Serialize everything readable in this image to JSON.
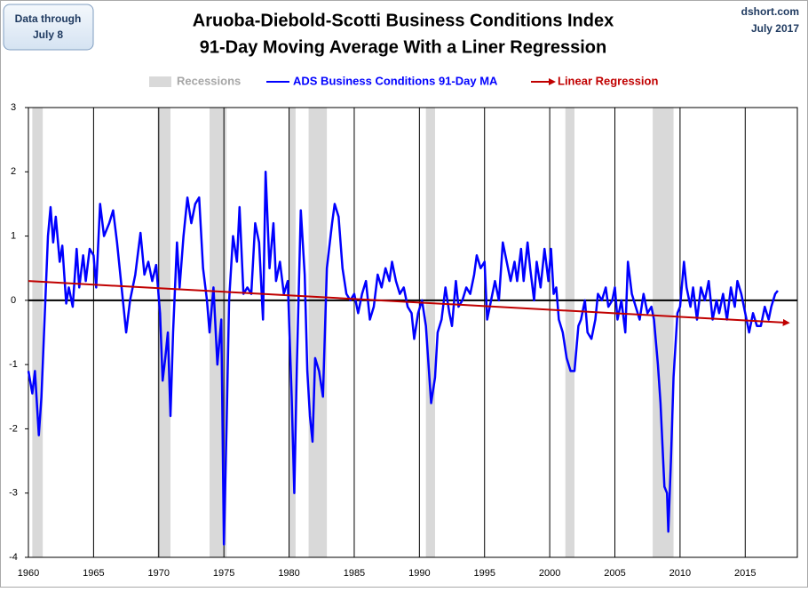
{
  "chart_data": {
    "type": "line",
    "title": "Aruoba-Diebold-Scotti Business Conditions Index",
    "subtitle": "91-Day Moving Average With a Liner Regression",
    "annotations": {
      "data_note": [
        "Data through",
        "July 8"
      ],
      "source": "dshort.com",
      "date": "July 2017"
    },
    "xlim": [
      1960,
      2019
    ],
    "xticks": [
      1960,
      1965,
      1970,
      1975,
      1980,
      1985,
      1990,
      1995,
      2000,
      2005,
      2010,
      2015
    ],
    "ylim": [
      -4,
      3
    ],
    "yticks": [
      -4,
      -3,
      -2,
      -1,
      0,
      1,
      2,
      3
    ],
    "grid": "x",
    "zero_line": true,
    "recessions": {
      "name": "Recessions",
      "color": "#d9d9d9",
      "spans": [
        [
          1960.3,
          1961.1
        ],
        [
          1969.9,
          1970.9
        ],
        [
          1973.9,
          1975.2
        ],
        [
          1980.0,
          1980.5
        ],
        [
          1981.5,
          1982.9
        ],
        [
          1990.5,
          1991.2
        ],
        [
          2001.2,
          2001.9
        ],
        [
          2007.9,
          2009.5
        ]
      ]
    },
    "series": [
      {
        "name": "ADS Business Conditions 91-Day MA",
        "color": "#0000ff",
        "x": [
          1960.0,
          1960.3,
          1960.5,
          1960.8,
          1961.0,
          1961.3,
          1961.5,
          1961.7,
          1961.9,
          1962.1,
          1962.4,
          1962.6,
          1962.9,
          1963.1,
          1963.4,
          1963.7,
          1963.9,
          1964.2,
          1964.4,
          1964.7,
          1965.0,
          1965.2,
          1965.5,
          1965.8,
          1966.2,
          1966.5,
          1966.8,
          1967.1,
          1967.5,
          1967.8,
          1968.2,
          1968.6,
          1968.9,
          1969.2,
          1969.5,
          1969.8,
          1970.1,
          1970.3,
          1970.5,
          1970.7,
          1970.9,
          1971.1,
          1971.4,
          1971.6,
          1971.9,
          1972.2,
          1972.5,
          1972.8,
          1973.1,
          1973.4,
          1973.7,
          1973.9,
          1974.2,
          1974.5,
          1974.8,
          1975.0,
          1975.2,
          1975.4,
          1975.7,
          1976.0,
          1976.2,
          1976.5,
          1976.8,
          1977.1,
          1977.4,
          1977.7,
          1978.0,
          1978.2,
          1978.5,
          1978.8,
          1979.0,
          1979.3,
          1979.6,
          1979.9,
          1980.2,
          1980.4,
          1980.6,
          1980.9,
          1981.2,
          1981.4,
          1981.6,
          1981.8,
          1982.0,
          1982.3,
          1982.6,
          1982.9,
          1983.3,
          1983.5,
          1983.8,
          1984.1,
          1984.4,
          1984.7,
          1985.0,
          1985.3,
          1985.6,
          1985.9,
          1986.2,
          1986.5,
          1986.8,
          1987.1,
          1987.4,
          1987.7,
          1987.9,
          1988.2,
          1988.5,
          1988.8,
          1989.1,
          1989.4,
          1989.6,
          1989.9,
          1990.2,
          1990.5,
          1990.7,
          1990.9,
          1991.2,
          1991.4,
          1991.7,
          1992.0,
          1992.3,
          1992.5,
          1992.8,
          1993.0,
          1993.3,
          1993.6,
          1993.9,
          1994.2,
          1994.4,
          1994.7,
          1995.0,
          1995.2,
          1995.5,
          1995.8,
          1996.1,
          1996.4,
          1996.7,
          1997.0,
          1997.3,
          1997.5,
          1997.8,
          1998.0,
          1998.3,
          1998.5,
          1998.8,
          1999.0,
          1999.3,
          1999.6,
          1999.9,
          2000.1,
          2000.3,
          2000.5,
          2000.7,
          2001.0,
          2001.3,
          2001.6,
          2001.9,
          2002.2,
          2002.4,
          2002.7,
          2002.9,
          2003.2,
          2003.5,
          2003.7,
          2004.0,
          2004.3,
          2004.5,
          2004.8,
          2005.0,
          2005.2,
          2005.5,
          2005.8,
          2006.0,
          2006.3,
          2006.6,
          2006.9,
          2007.2,
          2007.5,
          2007.8,
          2008.0,
          2008.3,
          2008.5,
          2008.8,
          2009.0,
          2009.1,
          2009.3,
          2009.5,
          2009.8,
          2010.0,
          2010.3,
          2010.5,
          2010.8,
          2011.0,
          2011.3,
          2011.6,
          2011.9,
          2012.2,
          2012.5,
          2012.8,
          2013.0,
          2013.3,
          2013.6,
          2013.9,
          2014.2,
          2014.4,
          2014.7,
          2015.0,
          2015.3,
          2015.6,
          2015.9,
          2016.2,
          2016.5,
          2016.8,
          2017.0,
          2017.3,
          2017.5
        ],
        "values": [
          -1.1,
          -1.45,
          -1.1,
          -2.1,
          -1.5,
          0.0,
          1.0,
          1.45,
          0.9,
          1.3,
          0.6,
          0.85,
          -0.05,
          0.2,
          -0.1,
          0.8,
          0.2,
          0.7,
          0.3,
          0.8,
          0.7,
          0.2,
          1.5,
          1.0,
          1.2,
          1.4,
          0.9,
          0.3,
          -0.5,
          0.0,
          0.4,
          1.05,
          0.4,
          0.6,
          0.3,
          0.55,
          -0.2,
          -1.25,
          -0.9,
          -0.5,
          -1.8,
          -0.5,
          0.9,
          0.2,
          1.0,
          1.6,
          1.2,
          1.5,
          1.6,
          0.5,
          0.0,
          -0.5,
          0.2,
          -1.0,
          -0.3,
          -3.8,
          -2.0,
          0.0,
          1.0,
          0.6,
          1.45,
          0.1,
          0.2,
          0.1,
          1.2,
          0.9,
          -0.3,
          2.0,
          0.5,
          1.2,
          0.3,
          0.6,
          0.1,
          0.3,
          -1.5,
          -3.0,
          -1.0,
          1.4,
          0.4,
          -1.1,
          -1.8,
          -2.2,
          -0.9,
          -1.1,
          -1.5,
          0.5,
          1.2,
          1.5,
          1.3,
          0.5,
          0.1,
          0.0,
          0.1,
          -0.2,
          0.1,
          0.3,
          -0.3,
          -0.1,
          0.4,
          0.2,
          0.5,
          0.3,
          0.6,
          0.3,
          0.1,
          0.2,
          -0.1,
          -0.2,
          -0.6,
          -0.2,
          0.0,
          -0.4,
          -1.0,
          -1.6,
          -1.2,
          -0.5,
          -0.3,
          0.2,
          -0.2,
          -0.4,
          0.3,
          -0.1,
          0.0,
          0.2,
          0.1,
          0.4,
          0.7,
          0.5,
          0.6,
          -0.3,
          0.0,
          0.3,
          0.0,
          0.9,
          0.6,
          0.3,
          0.6,
          0.3,
          0.8,
          0.3,
          0.9,
          0.5,
          0.0,
          0.6,
          0.2,
          0.8,
          0.3,
          0.8,
          0.1,
          0.2,
          -0.3,
          -0.5,
          -0.9,
          -1.1,
          -1.1,
          -0.4,
          -0.3,
          0.0,
          -0.5,
          -0.6,
          -0.3,
          0.1,
          0.0,
          0.2,
          -0.1,
          0.0,
          0.2,
          -0.3,
          0.0,
          -0.5,
          0.6,
          0.1,
          -0.1,
          -0.3,
          0.1,
          -0.2,
          -0.1,
          -0.3,
          -1.0,
          -1.6,
          -2.9,
          -3.0,
          -3.6,
          -2.5,
          -1.2,
          -0.2,
          -0.1,
          0.6,
          0.2,
          -0.1,
          0.2,
          -0.3,
          0.2,
          0.0,
          0.3,
          -0.3,
          0.0,
          -0.2,
          0.1,
          -0.3,
          0.2,
          -0.1,
          0.3,
          0.1,
          -0.2,
          -0.5,
          -0.2,
          -0.4,
          -0.4,
          -0.1,
          -0.3,
          -0.1,
          0.1,
          0.15
        ]
      },
      {
        "name": "Linear Regression",
        "color": "#c00000",
        "x": [
          1960,
          2018.3
        ],
        "values": [
          0.3,
          -0.35
        ]
      }
    ]
  }
}
